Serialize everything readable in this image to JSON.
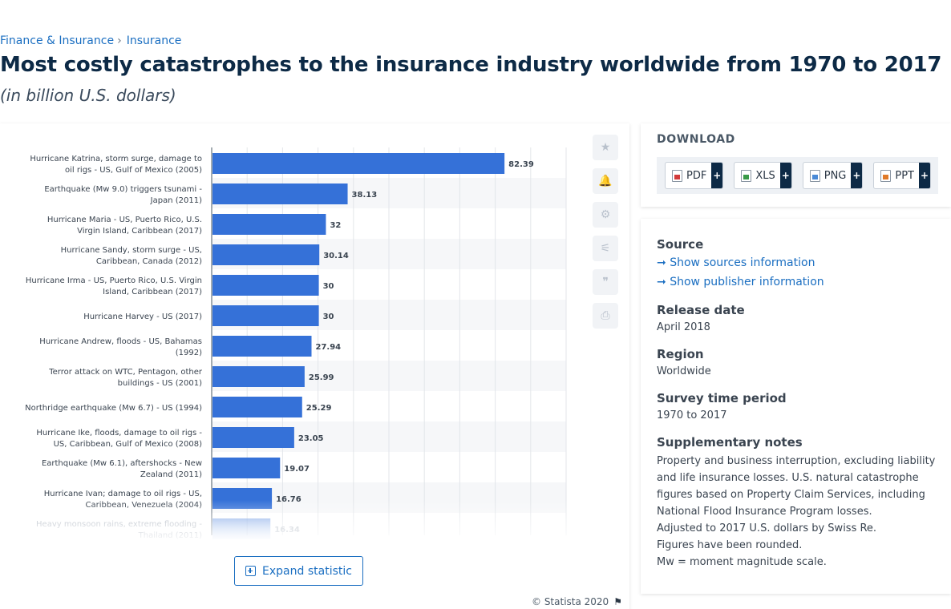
{
  "breadcrumb": {
    "items": [
      "Finance & Insurance",
      "Insurance"
    ],
    "separator": "›"
  },
  "header": {
    "title": "Most costly catastrophes to the insurance industry worldwide from 1970 to 2017",
    "subtitle": "(in billion U.S. dollars)"
  },
  "chart_data": {
    "type": "bar",
    "orientation": "horizontal",
    "categories": [
      [
        "Hurricane Katrina, storm surge, damage to",
        "oil rigs - US, Gulf of Mexico (2005)"
      ],
      [
        "Earthquake (Mw 9.0) triggers tsunami -",
        "Japan (2011)"
      ],
      [
        "Hurricane Maria - US, Puerto Rico, U.S.",
        "Virgin Island, Caribbean (2017)"
      ],
      [
        "Hurricane Sandy, storm surge - US,",
        "Caribbean, Canada (2012)"
      ],
      [
        "Hurricane Irma - US, Puerto Rico, U.S. Virgin",
        "Island, Caribbean (2017)"
      ],
      [
        "Hurricane Harvey - US (2017)"
      ],
      [
        "Hurricane Andrew, floods - US, Bahamas",
        "(1992)"
      ],
      [
        "Terror attack on WTC, Pentagon, other",
        "buildings - US (2001)"
      ],
      [
        "Northridge earthquake (Mw 6.7) - US (1994)"
      ],
      [
        "Hurricane Ike, floods, damage to oil rigs -",
        "US, Caribbean, Gulf of Mexico (2008)"
      ],
      [
        "Earthquake (Mw 6.1), aftershocks - New",
        "Zealand (2011)"
      ],
      [
        "Hurricane Ivan; damage to oil rigs - US,",
        "Caribbean, Venezuela (2004)"
      ],
      [
        "Heavy monsoon rains, extreme flooding -",
        "Thailand (2011)"
      ]
    ],
    "values": [
      82.39,
      38.13,
      32,
      30.14,
      30,
      30,
      27.94,
      25.99,
      25.29,
      23.05,
      19.07,
      16.76,
      16.34
    ],
    "value_labels": [
      "82.39",
      "38.13",
      "32",
      "30.14",
      "30",
      "30",
      "27.94",
      "25.99",
      "25.29",
      "23.05",
      "19.07",
      "16.76",
      "16.34"
    ],
    "xlim": [
      0,
      100
    ],
    "grid": true,
    "bar_color": "#3571d8"
  },
  "toolbar": {
    "icons": [
      "star-icon",
      "bell-icon",
      "gear-icon",
      "share-icon",
      "quote-icon",
      "print-icon"
    ],
    "glyphs": [
      "★",
      "🔔",
      "⚙",
      "⚟",
      "❞",
      "⎙"
    ]
  },
  "expand": {
    "label": "Expand statistic"
  },
  "footer": {
    "copyright": "© Statista 2020",
    "flag": "⚑"
  },
  "download": {
    "heading": "DOWNLOAD",
    "buttons": [
      {
        "label": "PDF",
        "plus": "+"
      },
      {
        "label": "XLS",
        "plus": "+"
      },
      {
        "label": "PNG",
        "plus": "+"
      },
      {
        "label": "PPT",
        "plus": "+"
      }
    ]
  },
  "info": {
    "source_label": "Source",
    "source_link": "Show sources information",
    "publisher_link": "Show publisher information",
    "link_arrow": "➞",
    "release_label": "Release date",
    "release_value": "April 2018",
    "region_label": "Region",
    "region_value": "Worldwide",
    "period_label": "Survey time period",
    "period_value": "1970 to 2017",
    "notes_label": "Supplementary notes",
    "notes": [
      "Property and business interruption, excluding liability and life insurance losses. U.S. natural catastrophe figures based on Property Claim Services, including National Flood Insurance Program losses.",
      "Adjusted to 2017 U.S. dollars by Swiss Re.",
      "Figures have been rounded.",
      "Mw = moment magnitude scale."
    ]
  }
}
